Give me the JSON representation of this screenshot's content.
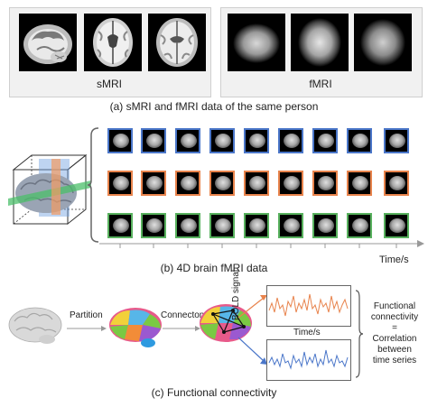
{
  "panel_a": {
    "smri_label": "sMRI",
    "fmri_label": "fMRI",
    "caption": "(a) sMRI and fMRI data of the same person"
  },
  "panel_b": {
    "caption": "(b) 4D brain fMRI data",
    "time_axis_label": "Time/s",
    "row_colors": [
      "#4a76c9",
      "#e8834c",
      "#58b15e"
    ],
    "columns": 9
  },
  "panel_c": {
    "partition_label": "Partition",
    "connectome_label": "Connectome",
    "bold_label": "BOLD signal",
    "time_label": "Time/s",
    "fc_lines": [
      "Functional",
      "connectivity",
      "=",
      "Correlation",
      "between",
      "time series"
    ],
    "caption": "(c) Functional connectivity",
    "signal_colors": [
      "#e8834c",
      "#4a76c9"
    ]
  }
}
